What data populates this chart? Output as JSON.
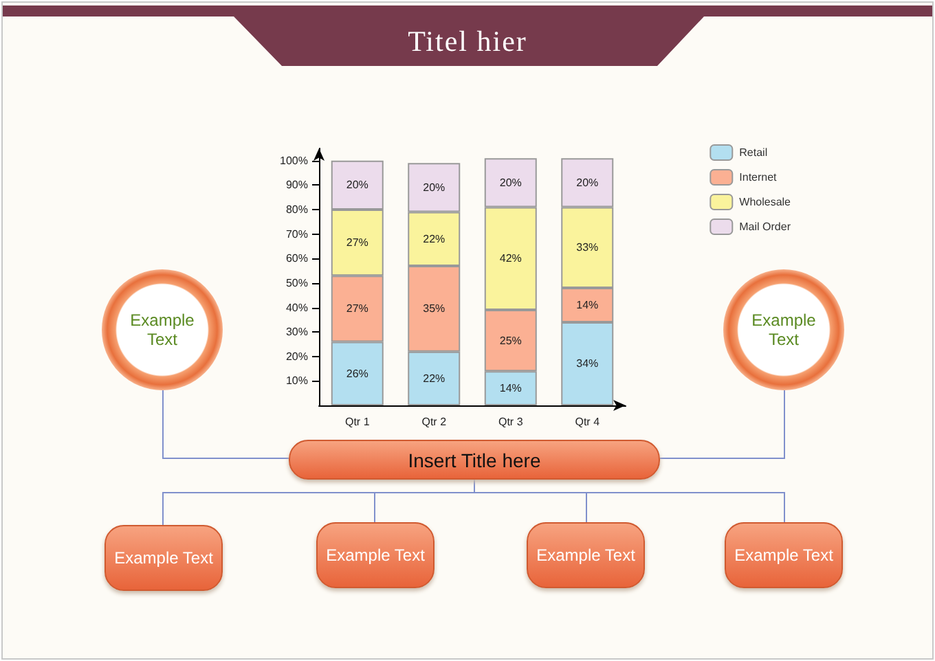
{
  "chart_data": {
    "type": "bar",
    "title": "Titel hier",
    "stacked": true,
    "categories": [
      "Qtr 1",
      "Qtr 2",
      "Qtr 3",
      "Qtr 4"
    ],
    "series": [
      {
        "name": "Retail",
        "color": "#b3dff0",
        "values": [
          26,
          22,
          14,
          34
        ],
        "value_labels": [
          "26%",
          "22%",
          "14%",
          "34%"
        ]
      },
      {
        "name": "Internet",
        "color": "#fbb093",
        "values": [
          27,
          35,
          25,
          14
        ],
        "value_labels": [
          "27%",
          "35%",
          "25%",
          "14%"
        ]
      },
      {
        "name": "Wholesale",
        "color": "#faf39c",
        "values": [
          27,
          22,
          42,
          33
        ],
        "value_labels": [
          "27%",
          "22%",
          "42%",
          "33%"
        ]
      },
      {
        "name": "Mail Order",
        "color": "#ecdcec",
        "values": [
          20,
          20,
          20,
          20
        ],
        "value_labels": [
          "20%",
          "20%",
          "20%",
          "20%"
        ]
      }
    ],
    "ylim": [
      0,
      105
    ],
    "yticks": [
      {
        "value": 10,
        "label": "10%"
      },
      {
        "value": 20,
        "label": "20%"
      },
      {
        "value": 30,
        "label": "30%"
      },
      {
        "value": 40,
        "label": "40%"
      },
      {
        "value": 50,
        "label": "50%"
      },
      {
        "value": 60,
        "label": "60%"
      },
      {
        "value": 70,
        "label": "70%"
      },
      {
        "value": 80,
        "label": "80%"
      },
      {
        "value": 90,
        "label": "90%"
      },
      {
        "value": 100,
        "label": "100%"
      }
    ],
    "grid": false,
    "legend": "top right",
    "annotations": [
      "Example Text",
      "Example Text",
      "Insert Title here",
      "Example Text",
      "Example Text",
      "Example Text",
      "Example Text"
    ]
  }
}
